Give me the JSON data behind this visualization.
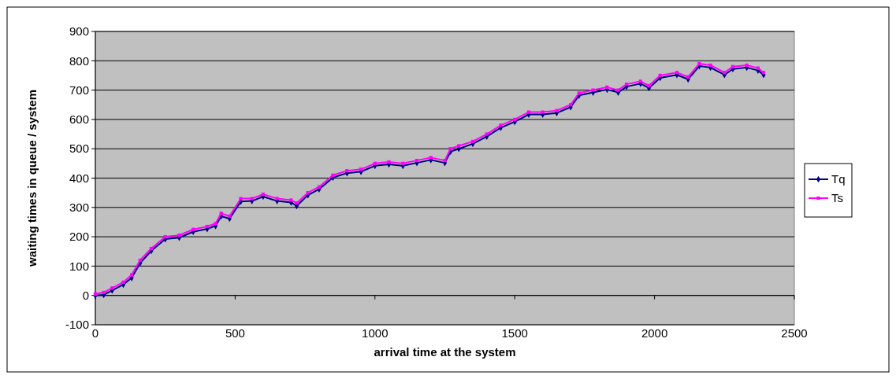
{
  "chart_data": {
    "type": "line",
    "xlabel": "arrival time at the system",
    "ylabel": "waiting times in queue / system",
    "xlim": [
      0,
      2500
    ],
    "xticks": [
      0,
      500,
      1000,
      1500,
      2000,
      2500
    ],
    "ylim": [
      -100,
      900
    ],
    "yticks": [
      -100,
      0,
      100,
      200,
      300,
      400,
      500,
      600,
      700,
      800,
      900
    ],
    "grid": "y",
    "legend": "right",
    "x": [
      0,
      30,
      60,
      100,
      130,
      160,
      200,
      250,
      300,
      350,
      400,
      430,
      450,
      480,
      520,
      560,
      600,
      650,
      700,
      720,
      760,
      800,
      850,
      900,
      950,
      1000,
      1050,
      1100,
      1150,
      1200,
      1250,
      1270,
      1300,
      1350,
      1400,
      1450,
      1500,
      1550,
      1600,
      1650,
      1700,
      1730,
      1780,
      1830,
      1870,
      1900,
      1950,
      1980,
      2020,
      2080,
      2120,
      2160,
      2200,
      2250,
      2280,
      2330,
      2370,
      2390
    ],
    "series": [
      {
        "name": "Tq",
        "color": "#000080",
        "marker": "diamond",
        "values": [
          0,
          2,
          17,
          37,
          60,
          110,
          152,
          192,
          197,
          217,
          227,
          237,
          270,
          262,
          320,
          322,
          337,
          322,
          317,
          305,
          342,
          362,
          402,
          417,
          422,
          442,
          447,
          442,
          452,
          462,
          452,
          490,
          500,
          517,
          542,
          572,
          592,
          617,
          617,
          622,
          642,
          682,
          692,
          702,
          692,
          712,
          722,
          707,
          742,
          752,
          737,
          782,
          777,
          752,
          772,
          777,
          767,
          752
        ]
      },
      {
        "name": "Ts",
        "color": "#ff00ff",
        "marker": "square",
        "values": [
          5,
          10,
          25,
          45,
          70,
          120,
          160,
          200,
          205,
          225,
          235,
          245,
          280,
          270,
          330,
          330,
          345,
          330,
          325,
          315,
          350,
          370,
          410,
          425,
          430,
          450,
          455,
          450,
          460,
          470,
          460,
          500,
          510,
          525,
          550,
          580,
          600,
          625,
          625,
          630,
          650,
          690,
          700,
          710,
          700,
          720,
          730,
          715,
          750,
          760,
          745,
          790,
          785,
          760,
          780,
          785,
          775,
          760
        ]
      }
    ]
  }
}
